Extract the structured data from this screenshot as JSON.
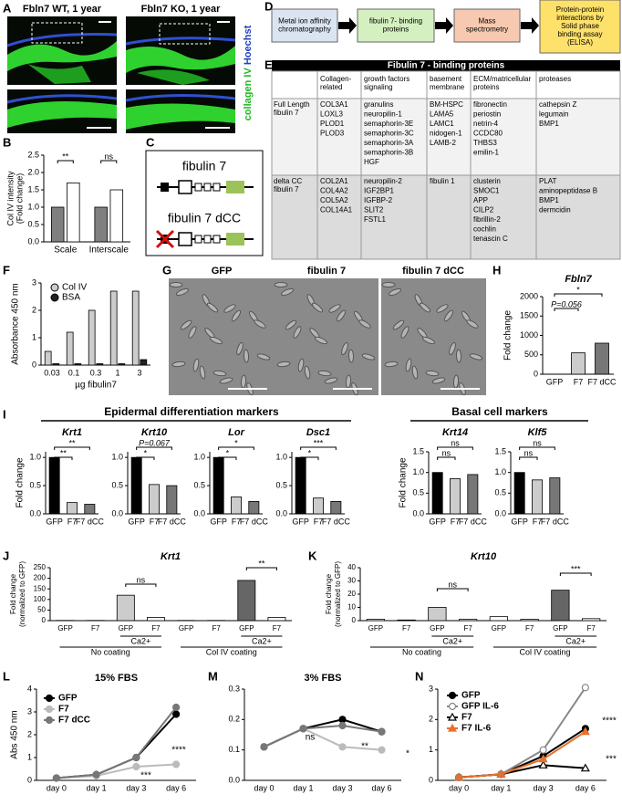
{
  "panels": [
    {
      "label": "A",
      "titles": [
        "Fbln7 WT, 1 year",
        "Fbln7 KO, 1 year"
      ],
      "stain": [
        "collagen IV",
        "Hoechst"
      ]
    },
    {
      "label": "B",
      "type": "bar",
      "categories": [
        "Scale",
        "Interscale"
      ],
      "series": [
        {
          "color": "#808080",
          "values": [
            1.0,
            1.0
          ]
        },
        {
          "color": "#ffffff",
          "values": [
            1.7,
            1.5
          ]
        }
      ],
      "ylabel": [
        "Col IV intensity",
        "(Fold change)"
      ],
      "ylim": [
        0,
        2.5
      ],
      "yticks": [
        {
          "value": 0,
          "label": "0.0"
        },
        0.5,
        {
          "value": 1,
          "label": "1.0"
        },
        1.5,
        {
          "value": 2,
          "label": "2.0"
        },
        2.5
      ],
      "annotations": [
        "**",
        "ns"
      ]
    },
    {
      "label": "C",
      "constructs": [
        "fibulin 7",
        "fibulin 7 dCC"
      ]
    },
    {
      "label": "D",
      "steps": [
        [
          "Metal ion affinity",
          "chromatography"
        ],
        [
          "fibulin 7- binding",
          "proteins"
        ],
        [
          "Mass",
          "spectrometry"
        ],
        [
          "Protein-protein",
          "interactions by",
          "Solid phase",
          "binding assay",
          "(ELISA)"
        ]
      ]
    },
    {
      "label": "E",
      "title": "Fibulin 7 - binding proteins",
      "headers": [
        [
          "Collagen-",
          "related"
        ],
        [
          "growth factors",
          "signaling"
        ],
        [
          "basement",
          "membrane"
        ],
        [
          "ECM/matricellular",
          "proteins"
        ],
        [
          "proteases"
        ]
      ],
      "rows": [
        {
          "name": [
            "Full Length",
            "fibulin 7"
          ],
          "cells": [
            [
              "COL3A1",
              "LOXL3",
              "PLOD1",
              "PLOD3"
            ],
            [
              "granulins",
              "neuropilin-1",
              "semaphorin-3E",
              "semaphorin-3C",
              "semaphorin-3A",
              "semaphorin-3B",
              "HGF"
            ],
            [
              "BM-HSPC",
              "LAMA5",
              "LAMC1",
              "nidogen-1",
              "LAMB-2"
            ],
            [
              "fibronectin",
              "periostin",
              "netrin-4",
              "CCDC80",
              "THBS3",
              "emilin-1"
            ],
            [
              "cathepsin Z",
              "legumain",
              "BMP1"
            ]
          ]
        },
        {
          "name": [
            "delta CC",
            "fibulin 7"
          ],
          "cells": [
            [
              "COL2A1",
              "COL4A2",
              "COL5A2",
              "COL14A1"
            ],
            [
              "neuropilin-2",
              "IGF2BP1",
              "IGFBP-2",
              "SLIT2",
              "FSTL1"
            ],
            [
              "fibulin 1"
            ],
            [
              "clusterin",
              "SMOC1",
              "APP",
              "CILP2",
              "fibrillin-2",
              "cochlin",
              "tenascin C"
            ],
            [
              "PLAT",
              "aminopeptidase B",
              "BMP1",
              "dermcidin"
            ]
          ]
        }
      ]
    },
    {
      "label": "F",
      "type": "bar",
      "categories": [
        "0.03",
        "0.1",
        "0.3",
        "1",
        "3"
      ],
      "series": [
        {
          "name": "Col IV",
          "color": "#cccccc",
          "values": [
            0.5,
            1.2,
            2.0,
            2.7,
            2.7
          ]
        },
        {
          "name": "BSA",
          "color": "#222222",
          "values": [
            0.05,
            0.05,
            0.05,
            0.05,
            0.2
          ]
        }
      ],
      "ylabel": "Absorbance 450 nm",
      "xlabel": "µg fibulin7",
      "ylim": [
        0,
        3
      ],
      "yticks": [
        0,
        1,
        2,
        3
      ],
      "legend": "upper left"
    },
    {
      "label": "G",
      "titles": [
        "GFP",
        "fibulin 7",
        "fibulin 7 dCC"
      ]
    },
    {
      "label": "H",
      "type": "bar",
      "title": "Fbln7",
      "categories": [
        "GFP",
        "F7",
        "F7 dCC"
      ],
      "values": [
        1,
        550,
        800
      ],
      "colors": [
        "#000000",
        "#cccccc",
        "#777777"
      ],
      "ylabel": "Fold change",
      "ylim": [
        0,
        2000
      ],
      "yticks": [
        0,
        500,
        1000,
        1500,
        2000
      ],
      "annotations": [
        "*",
        "P=0.056"
      ]
    },
    {
      "label": "I",
      "headers": [
        "Epidermal differentiation markers",
        "Basal cell markers"
      ],
      "charts": [
        {
          "type": "bar",
          "title": "Krt1",
          "categories": [
            "GFP",
            "F7",
            "F7 dCC"
          ],
          "values": [
            1.0,
            0.2,
            0.17
          ],
          "colors": [
            "#000000",
            "#cccccc",
            "#777777"
          ],
          "ylabel": "Fold change",
          "ylim": [
            0,
            1.1
          ],
          "yticks": [
            {
              "value": 0,
              "label": "0.0"
            },
            0.5,
            {
              "value": 1,
              "label": "1.0"
            }
          ],
          "annotations": [
            "**",
            "**"
          ]
        },
        {
          "type": "bar",
          "title": "Krt10",
          "categories": [
            "GFP",
            "F7",
            "F7 dCC"
          ],
          "values": [
            1.0,
            0.52,
            0.5
          ],
          "colors": [
            "#000000",
            "#cccccc",
            "#777777"
          ],
          "ylim": [
            0,
            1.1
          ],
          "yticks": [
            {
              "value": 0,
              "label": "0.0"
            },
            0.5,
            {
              "value": 1,
              "label": "1.0"
            }
          ],
          "annotations": [
            "*",
            "P=0.067"
          ]
        },
        {
          "type": "bar",
          "title": "Lor",
          "categories": [
            "GFP",
            "F7",
            "F7 dCC"
          ],
          "values": [
            1.0,
            0.3,
            0.22
          ],
          "colors": [
            "#000000",
            "#cccccc",
            "#777777"
          ],
          "ylim": [
            0,
            1.1
          ],
          "yticks": [
            {
              "value": 0,
              "label": "0.0"
            },
            0.5,
            {
              "value": 1,
              "label": "1.0"
            }
          ],
          "annotations": [
            "*",
            "*"
          ]
        },
        {
          "type": "bar",
          "title": "Dsc1",
          "categories": [
            "GFP",
            "F7",
            "F7 dCC"
          ],
          "values": [
            1.0,
            0.28,
            0.22
          ],
          "colors": [
            "#000000",
            "#cccccc",
            "#777777"
          ],
          "ylim": [
            0,
            1.1
          ],
          "yticks": [
            {
              "value": 0,
              "label": "0.0"
            },
            0.5,
            {
              "value": 1,
              "label": "1.0"
            }
          ],
          "annotations": [
            "*",
            "***"
          ]
        },
        {
          "type": "bar",
          "title": "Krt14",
          "categories": [
            "GFP",
            "F7",
            "F7 dCC"
          ],
          "values": [
            1.0,
            0.85,
            0.95
          ],
          "colors": [
            "#000000",
            "#cccccc",
            "#777777"
          ],
          "ylabel": "Fold change",
          "ylim": [
            0,
            1.5
          ],
          "yticks": [
            {
              "value": 0,
              "label": "0.0"
            },
            0.5,
            {
              "value": 1,
              "label": "1.0"
            },
            1.5
          ],
          "annotations": [
            "ns",
            "ns"
          ]
        },
        {
          "type": "bar",
          "title": "Klf5",
          "categories": [
            "GFP",
            "F7",
            "F7 dCC"
          ],
          "values": [
            1.0,
            0.82,
            0.87
          ],
          "colors": [
            "#000000",
            "#cccccc",
            "#777777"
          ],
          "ylim": [
            0,
            1.5
          ],
          "yticks": [
            {
              "value": 0,
              "label": "0.0"
            },
            0.5,
            {
              "value": 1,
              "label": "1.0"
            },
            1.5
          ],
          "annotations": [
            "ns",
            "ns"
          ]
        }
      ]
    },
    {
      "label": "J",
      "type": "bar",
      "title": "Krt1",
      "categories": [
        "GFP",
        "F7",
        "GFP",
        "F7",
        "GFP",
        "F7",
        "GFP",
        "F7"
      ],
      "values": [
        1,
        1,
        120,
        15,
        1,
        1,
        190,
        15
      ],
      "colors": [
        "#ffffff",
        "#ffffff",
        "#cccccc",
        "#ffffff",
        "#ffffff",
        "#ffffff",
        "#666666",
        "#ffffff"
      ],
      "ylabel": [
        "Fold change",
        "(normalized to GFP)"
      ],
      "ylim": [
        0,
        250
      ],
      "yticks": [
        0,
        50,
        100,
        150,
        200,
        250
      ],
      "group_labels": [
        "Ca2+",
        "Ca2+",
        "No coating",
        "Col IV coating"
      ],
      "annotations": [
        "ns",
        "**"
      ]
    },
    {
      "label": "K",
      "type": "bar",
      "title": "Krt10",
      "categories": [
        "GFP",
        "F7",
        "GFP",
        "F7",
        "GFP",
        "F7",
        "GFP",
        "F7"
      ],
      "values": [
        1,
        0.5,
        10,
        1,
        3,
        1,
        23,
        1.5
      ],
      "colors": [
        "#ffffff",
        "#ffffff",
        "#cccccc",
        "#ffffff",
        "#ffffff",
        "#ffffff",
        "#666666",
        "#ffffff"
      ],
      "ylabel": [
        "Fold change",
        "(normalized to GFP)"
      ],
      "ylim": [
        0,
        40
      ],
      "yticks": [
        0,
        10,
        20,
        30,
        40
      ],
      "group_labels": [
        "Ca2+",
        "Ca2+",
        "No coating",
        "Col IV coating"
      ],
      "annotations": [
        "ns",
        "***"
      ]
    },
    {
      "label": "L",
      "type": "line",
      "title": "15% FBS",
      "categories": [
        "day 0",
        "day 1",
        "day 3",
        "day 6"
      ],
      "series": [
        {
          "name": "GFP",
          "color": "#000000",
          "marker": "circle",
          "filled": true,
          "values": [
            0.1,
            0.25,
            1.0,
            2.9
          ]
        },
        {
          "name": "F7",
          "color": "#bbbbbb",
          "marker": "circle",
          "filled": true,
          "values": [
            0.1,
            0.2,
            0.6,
            0.7
          ]
        },
        {
          "name": "F7 dCC",
          "color": "#777777",
          "marker": "circle",
          "filled": true,
          "values": [
            0.1,
            0.25,
            1.0,
            3.2
          ]
        }
      ],
      "ylabel": "Abs 450 nm",
      "ylim": [
        0,
        4
      ],
      "yticks": [
        0,
        1,
        2,
        3,
        4
      ],
      "legend": "upper left",
      "annotations": [
        "****",
        "***"
      ]
    },
    {
      "label": "M",
      "type": "line",
      "title": "3% FBS",
      "categories": [
        "day 0",
        "day 1",
        "day 3",
        "day 6"
      ],
      "series": [
        {
          "color": "#000000",
          "marker": "circle",
          "filled": true,
          "values": [
            0.11,
            0.17,
            0.2,
            0.16
          ]
        },
        {
          "color": "#bbbbbb",
          "marker": "circle",
          "filled": true,
          "values": [
            0.11,
            0.17,
            0.11,
            0.1
          ]
        },
        {
          "color": "#777777",
          "marker": "circle",
          "filled": true,
          "values": [
            0.11,
            0.17,
            0.18,
            0.16
          ]
        }
      ],
      "ylim": [
        0,
        0.3
      ],
      "yticks": [
        {
          "value": 0,
          "label": "0.0"
        },
        0.1,
        0.2,
        0.3
      ],
      "annotations": [
        "ns",
        "**",
        "*"
      ]
    },
    {
      "label": "N",
      "type": "line",
      "categories": [
        "day 0",
        "day 1",
        "day 3",
        "day 6"
      ],
      "series": [
        {
          "name": "GFP",
          "color": "#000000",
          "marker": "circle",
          "filled": true,
          "values": [
            0.1,
            0.2,
            0.8,
            1.7
          ]
        },
        {
          "name": "GFP IL-6",
          "color": "#888888",
          "marker": "circle",
          "filled": false,
          "values": [
            0.1,
            0.2,
            1.0,
            3.05
          ]
        },
        {
          "name": "F7",
          "color": "#000000",
          "marker": "triangle",
          "filled": false,
          "values": [
            0.1,
            0.2,
            0.5,
            0.4
          ]
        },
        {
          "name": "F7 IL-6",
          "color": "#e8702a",
          "marker": "triangle",
          "filled": true,
          "values": [
            0.1,
            0.2,
            0.7,
            1.6
          ]
        }
      ],
      "ylim": [
        0,
        3
      ],
      "yticks": [
        0,
        1,
        2,
        3
      ],
      "legend": "upper left",
      "annotations": [
        "****",
        "***"
      ]
    }
  ]
}
